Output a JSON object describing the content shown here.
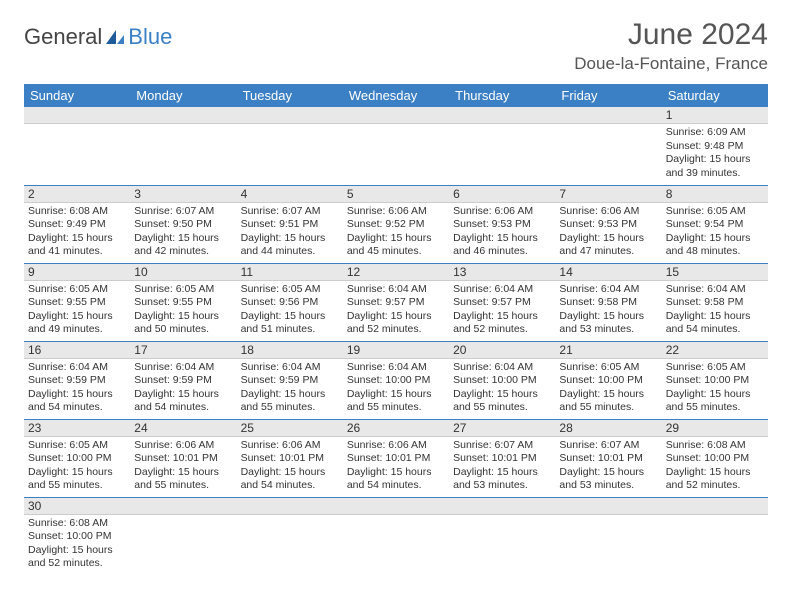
{
  "logo": {
    "text1": "General",
    "text2": "Blue"
  },
  "title": "June 2024",
  "location": "Doue-la-Fontaine, France",
  "colors": {
    "header_bg": "#3b7fc4",
    "header_text": "#ffffff",
    "daynum_bg": "#e8e8e8",
    "border": "#3b7fc4",
    "text": "#333333",
    "title_text": "#555555"
  },
  "weekdays": [
    "Sunday",
    "Monday",
    "Tuesday",
    "Wednesday",
    "Thursday",
    "Friday",
    "Saturday"
  ],
  "weeks": [
    [
      null,
      null,
      null,
      null,
      null,
      null,
      {
        "n": "1",
        "sr": "6:09 AM",
        "ss": "9:48 PM",
        "dl": "15 hours and 39 minutes."
      }
    ],
    [
      {
        "n": "2",
        "sr": "6:08 AM",
        "ss": "9:49 PM",
        "dl": "15 hours and 41 minutes."
      },
      {
        "n": "3",
        "sr": "6:07 AM",
        "ss": "9:50 PM",
        "dl": "15 hours and 42 minutes."
      },
      {
        "n": "4",
        "sr": "6:07 AM",
        "ss": "9:51 PM",
        "dl": "15 hours and 44 minutes."
      },
      {
        "n": "5",
        "sr": "6:06 AM",
        "ss": "9:52 PM",
        "dl": "15 hours and 45 minutes."
      },
      {
        "n": "6",
        "sr": "6:06 AM",
        "ss": "9:53 PM",
        "dl": "15 hours and 46 minutes."
      },
      {
        "n": "7",
        "sr": "6:06 AM",
        "ss": "9:53 PM",
        "dl": "15 hours and 47 minutes."
      },
      {
        "n": "8",
        "sr": "6:05 AM",
        "ss": "9:54 PM",
        "dl": "15 hours and 48 minutes."
      }
    ],
    [
      {
        "n": "9",
        "sr": "6:05 AM",
        "ss": "9:55 PM",
        "dl": "15 hours and 49 minutes."
      },
      {
        "n": "10",
        "sr": "6:05 AM",
        "ss": "9:55 PM",
        "dl": "15 hours and 50 minutes."
      },
      {
        "n": "11",
        "sr": "6:05 AM",
        "ss": "9:56 PM",
        "dl": "15 hours and 51 minutes."
      },
      {
        "n": "12",
        "sr": "6:04 AM",
        "ss": "9:57 PM",
        "dl": "15 hours and 52 minutes."
      },
      {
        "n": "13",
        "sr": "6:04 AM",
        "ss": "9:57 PM",
        "dl": "15 hours and 52 minutes."
      },
      {
        "n": "14",
        "sr": "6:04 AM",
        "ss": "9:58 PM",
        "dl": "15 hours and 53 minutes."
      },
      {
        "n": "15",
        "sr": "6:04 AM",
        "ss": "9:58 PM",
        "dl": "15 hours and 54 minutes."
      }
    ],
    [
      {
        "n": "16",
        "sr": "6:04 AM",
        "ss": "9:59 PM",
        "dl": "15 hours and 54 minutes."
      },
      {
        "n": "17",
        "sr": "6:04 AM",
        "ss": "9:59 PM",
        "dl": "15 hours and 54 minutes."
      },
      {
        "n": "18",
        "sr": "6:04 AM",
        "ss": "9:59 PM",
        "dl": "15 hours and 55 minutes."
      },
      {
        "n": "19",
        "sr": "6:04 AM",
        "ss": "10:00 PM",
        "dl": "15 hours and 55 minutes."
      },
      {
        "n": "20",
        "sr": "6:04 AM",
        "ss": "10:00 PM",
        "dl": "15 hours and 55 minutes."
      },
      {
        "n": "21",
        "sr": "6:05 AM",
        "ss": "10:00 PM",
        "dl": "15 hours and 55 minutes."
      },
      {
        "n": "22",
        "sr": "6:05 AM",
        "ss": "10:00 PM",
        "dl": "15 hours and 55 minutes."
      }
    ],
    [
      {
        "n": "23",
        "sr": "6:05 AM",
        "ss": "10:00 PM",
        "dl": "15 hours and 55 minutes."
      },
      {
        "n": "24",
        "sr": "6:06 AM",
        "ss": "10:01 PM",
        "dl": "15 hours and 55 minutes."
      },
      {
        "n": "25",
        "sr": "6:06 AM",
        "ss": "10:01 PM",
        "dl": "15 hours and 54 minutes."
      },
      {
        "n": "26",
        "sr": "6:06 AM",
        "ss": "10:01 PM",
        "dl": "15 hours and 54 minutes."
      },
      {
        "n": "27",
        "sr": "6:07 AM",
        "ss": "10:01 PM",
        "dl": "15 hours and 53 minutes."
      },
      {
        "n": "28",
        "sr": "6:07 AM",
        "ss": "10:01 PM",
        "dl": "15 hours and 53 minutes."
      },
      {
        "n": "29",
        "sr": "6:08 AM",
        "ss": "10:00 PM",
        "dl": "15 hours and 52 minutes."
      }
    ],
    [
      {
        "n": "30",
        "sr": "6:08 AM",
        "ss": "10:00 PM",
        "dl": "15 hours and 52 minutes."
      },
      null,
      null,
      null,
      null,
      null,
      null
    ]
  ],
  "labels": {
    "sunrise": "Sunrise:",
    "sunset": "Sunset:",
    "daylight": "Daylight:"
  }
}
